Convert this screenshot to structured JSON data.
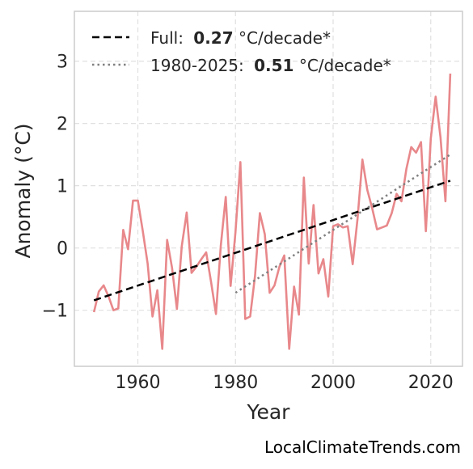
{
  "chart_data": {
    "type": "line",
    "xlabel": "Year",
    "ylabel": "Anomaly (°C)",
    "xlim": [
      1947,
      2026.5
    ],
    "ylim": [
      -1.9,
      3.8
    ],
    "x_ticks": [
      1960,
      1980,
      2000,
      2020
    ],
    "x_tick_labels": [
      "1960",
      "1980",
      "2000",
      "2020"
    ],
    "y_ticks": [
      -1,
      0,
      1,
      2,
      3
    ],
    "y_tick_labels": [
      "−1",
      "0",
      "1",
      "2",
      "3"
    ],
    "grid": true,
    "legend_position": "top-left",
    "series": [
      {
        "style": "solid",
        "color": "#e8888b",
        "x": [
          1951,
          1952,
          1953,
          1954,
          1955,
          1956,
          1957,
          1958,
          1959,
          1960,
          1961,
          1962,
          1963,
          1964,
          1965,
          1966,
          1967,
          1968,
          1969,
          1970,
          1971,
          1972,
          1973,
          1974,
          1975,
          1976,
          1977,
          1978,
          1979,
          1980,
          1981,
          1982,
          1983,
          1984,
          1985,
          1986,
          1987,
          1988,
          1989,
          1990,
          1991,
          1992,
          1993,
          1994,
          1995,
          1996,
          1997,
          1998,
          1999,
          2000,
          2001,
          2002,
          2003,
          2004,
          2005,
          2006,
          2007,
          2008,
          2009,
          2010,
          2011,
          2012,
          2013,
          2014,
          2015,
          2016,
          2017,
          2018,
          2019,
          2020,
          2021,
          2022,
          2023,
          2024
        ],
        "y": [
          -1.03,
          -0.7,
          -0.6,
          -0.78,
          -1.0,
          -0.97,
          0.29,
          -0.02,
          0.76,
          0.76,
          0.28,
          -0.25,
          -1.1,
          -0.68,
          -1.62,
          0.13,
          -0.32,
          -0.98,
          0.03,
          0.57,
          -0.4,
          -0.3,
          -0.18,
          -0.07,
          -0.55,
          -1.06,
          0.04,
          0.82,
          -0.61,
          0.25,
          1.38,
          -1.14,
          -1.1,
          -0.45,
          0.56,
          0.22,
          -0.72,
          -0.6,
          -0.3,
          -0.12,
          -1.62,
          -0.62,
          -1.07,
          1.13,
          -0.25,
          0.69,
          -0.41,
          -0.18,
          -0.78,
          0.35,
          0.38,
          0.33,
          0.35,
          -0.26,
          0.47,
          1.42,
          0.93,
          0.64,
          0.3,
          0.33,
          0.36,
          0.56,
          0.87,
          0.75,
          1.27,
          1.62,
          1.53,
          1.7,
          0.27,
          1.76,
          2.43,
          1.78,
          0.75,
          2.8
        ]
      },
      {
        "name": "Full:",
        "style": "dashed",
        "color": "#000000",
        "trend_label_bold": "0.27",
        "trend_label_unit": "°C/decade*",
        "x": [
          1951,
          2024
        ],
        "y": [
          -0.84,
          1.08
        ]
      },
      {
        "name": "1980-2025:",
        "style": "dotted",
        "color": "#808080",
        "trend_label_bold": "0.51",
        "trend_label_unit": "°C/decade*",
        "x": [
          1980,
          2024
        ],
        "y": [
          -0.72,
          1.5
        ]
      }
    ]
  },
  "watermark": "LocalClimateTrends.com"
}
